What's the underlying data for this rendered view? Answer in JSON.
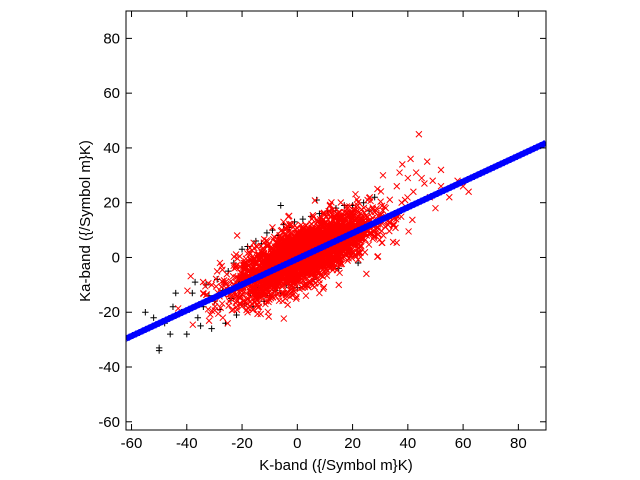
{
  "chart_data": {
    "type": "scatter",
    "title": "",
    "xlabel": "K-band ({/Symbol m}K)",
    "ylabel": "Ka-band ({/Symbol m}K)",
    "xlim": [
      -62,
      90
    ],
    "ylim": [
      -63,
      90
    ],
    "xticks": [
      -60,
      -40,
      -20,
      0,
      20,
      40,
      60,
      80
    ],
    "yticks": [
      -60,
      -40,
      -20,
      0,
      20,
      40,
      60,
      80
    ],
    "grid": false,
    "legend": "none",
    "series": [
      {
        "marker": "plus",
        "color": "#000000",
        "points": [
          [
            -55,
            -20
          ],
          [
            -50,
            -33
          ],
          [
            -50,
            -34
          ],
          [
            -48,
            -24
          ],
          [
            -45,
            -18
          ],
          [
            -42,
            -20
          ],
          [
            -40,
            -28
          ],
          [
            -38,
            -13
          ],
          [
            -36,
            -22
          ],
          [
            -34,
            -18
          ],
          [
            -33,
            -10
          ],
          [
            -32,
            -14
          ],
          [
            -31,
            -26
          ],
          [
            -30,
            -16
          ],
          [
            -29,
            -8
          ],
          [
            -28,
            -19
          ],
          [
            -27,
            -12
          ],
          [
            -26,
            -24
          ],
          [
            -25,
            -5
          ],
          [
            -24,
            -15
          ],
          [
            -23,
            -2
          ],
          [
            -22,
            -21
          ],
          [
            -21,
            -9
          ],
          [
            -20,
            3
          ],
          [
            -19,
            -17
          ],
          [
            -18,
            4
          ],
          [
            -17,
            -13
          ],
          [
            -16,
            -18
          ],
          [
            -15,
            6
          ],
          [
            -14,
            -11
          ],
          [
            -13,
            5
          ],
          [
            -12,
            -16
          ],
          [
            -11,
            9
          ],
          [
            -10,
            -14
          ],
          [
            -9,
            10
          ],
          [
            -8,
            -12
          ],
          [
            -7,
            8
          ],
          [
            -6,
            -13
          ],
          [
            -5,
            12
          ],
          [
            -4,
            -10
          ],
          [
            -3,
            11
          ],
          [
            -2,
            -9
          ],
          [
            -1,
            13
          ],
          [
            0,
            -11
          ],
          [
            2,
            14
          ],
          [
            3,
            -6
          ],
          [
            5,
            15
          ],
          [
            6,
            -8
          ],
          [
            8,
            16
          ],
          [
            9,
            -3
          ],
          [
            11,
            17
          ],
          [
            12,
            -2
          ],
          [
            14,
            18
          ],
          [
            15,
            -4
          ],
          [
            17,
            19
          ],
          [
            18,
            3
          ],
          [
            20,
            19
          ],
          [
            22,
            -2
          ],
          [
            24,
            20
          ],
          [
            26,
            17
          ],
          [
            28,
            22
          ],
          [
            30,
            13
          ],
          [
            -44,
            -13
          ],
          [
            -52,
            -22
          ],
          [
            -46,
            -28
          ],
          [
            -39,
            -19
          ],
          [
            -35,
            -25
          ],
          [
            -37,
            -9
          ],
          [
            7,
            21
          ],
          [
            -6,
            19
          ]
        ]
      },
      {
        "marker": "cross",
        "color": "#ff0000",
        "cloud": {
          "count": 3200,
          "slope": 0.45,
          "x_mean": 2,
          "x_std": 12,
          "y_noise_std": 5
        },
        "points": [
          [
            44,
            45
          ],
          [
            52,
            32
          ],
          [
            49,
            28
          ],
          [
            41,
            36
          ],
          [
            38,
            34
          ],
          [
            46,
            27
          ],
          [
            55,
            22
          ],
          [
            50,
            18
          ],
          [
            62,
            24
          ],
          [
            58,
            28
          ],
          [
            48,
            22
          ],
          [
            40,
            29
          ],
          [
            36,
            26
          ],
          [
            43,
            31
          ],
          [
            47,
            35
          ],
          [
            35,
            12
          ],
          [
            33,
            15
          ],
          [
            52,
            26
          ],
          [
            60,
            26
          ],
          [
            39,
            21
          ],
          [
            45,
            29
          ],
          [
            37,
            31
          ],
          [
            42,
            24
          ],
          [
            31,
            30
          ],
          [
            29,
            25
          ],
          [
            -5,
            13
          ],
          [
            -9,
            11
          ],
          [
            -20,
            -4
          ],
          [
            -26,
            -9
          ],
          [
            -31,
            -10
          ],
          [
            -34,
            -13
          ],
          [
            -22,
            -11
          ],
          [
            -18,
            -20
          ],
          [
            -28,
            -2
          ],
          [
            -15,
            -14
          ],
          [
            25,
            -6
          ],
          [
            15,
            -10
          ],
          [
            8,
            -13
          ],
          [
            19,
            4
          ],
          [
            28,
            8
          ]
        ]
      },
      {
        "marker": "dense-line",
        "color": "#0000ff",
        "fit": {
          "slope": 0.47,
          "intercept": -0.5
        },
        "x_range": [
          -62,
          90
        ]
      }
    ]
  }
}
